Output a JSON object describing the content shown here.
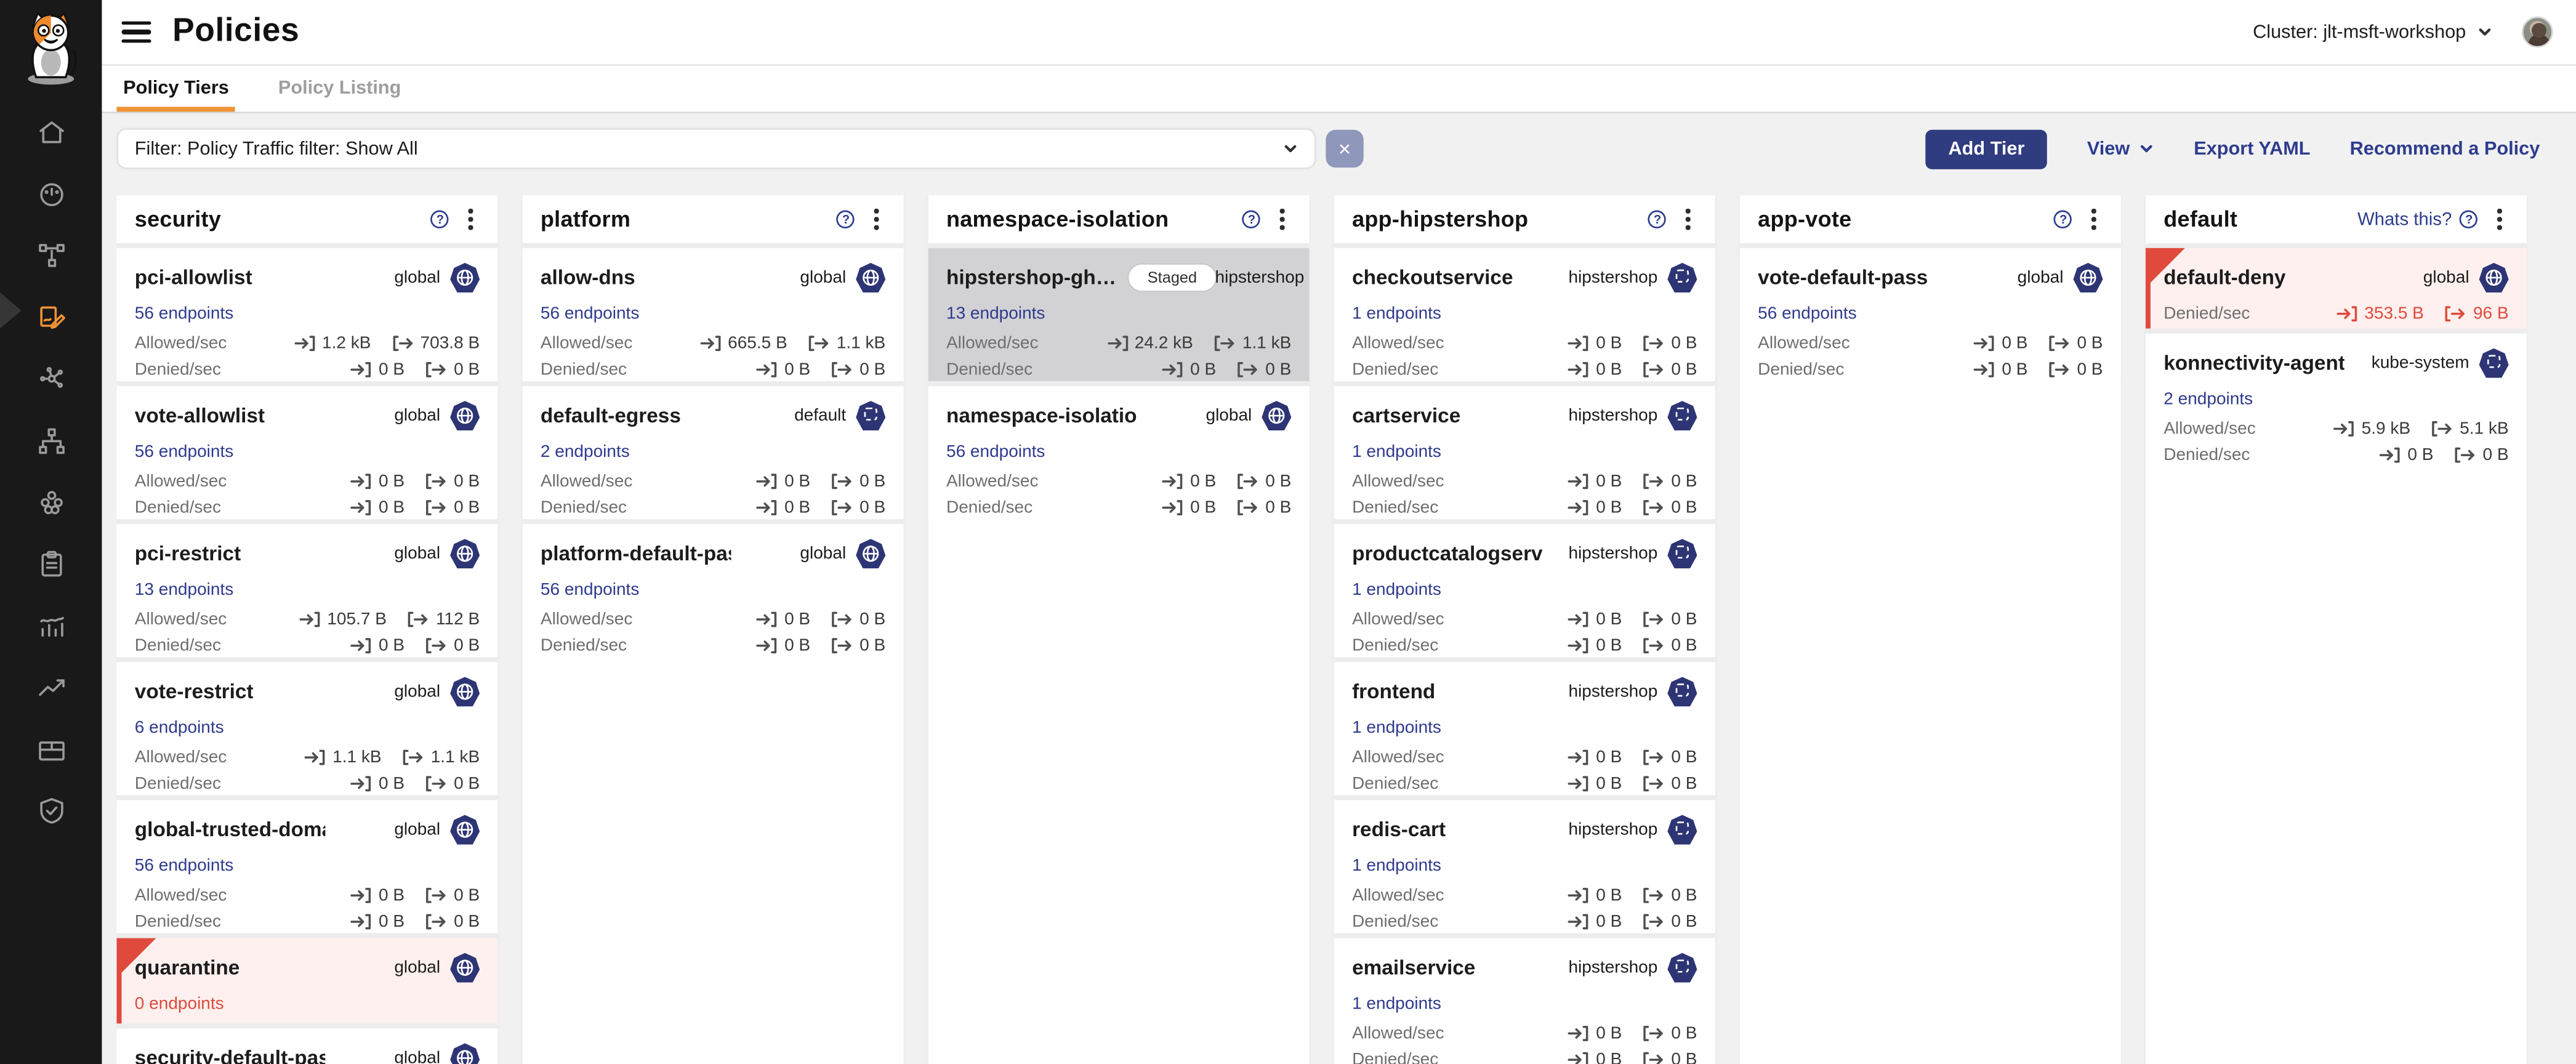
{
  "header": {
    "title": "Policies",
    "cluster_label": "Cluster: jlt-msft-workshop"
  },
  "sidebar": {
    "items": [
      {
        "name": "home"
      },
      {
        "name": "dashboard"
      },
      {
        "name": "service-graph"
      },
      {
        "name": "policies",
        "active": true
      },
      {
        "name": "network"
      },
      {
        "name": "endpoints"
      },
      {
        "name": "workloads"
      },
      {
        "name": "compliance"
      },
      {
        "name": "statistics"
      },
      {
        "name": "trends"
      },
      {
        "name": "storage"
      },
      {
        "name": "threat-defense"
      }
    ]
  },
  "tabs": [
    {
      "label": "Policy Tiers",
      "active": true
    },
    {
      "label": "Policy Listing",
      "active": false
    }
  ],
  "filter": {
    "label": "Filter: Policy Traffic filter: Show All",
    "clear_label": "×"
  },
  "actions": [
    {
      "label": "Add Tier"
    },
    {
      "label": "View"
    },
    {
      "label": "Export YAML"
    },
    {
      "label": "Recommend a Policy"
    }
  ],
  "colors": {
    "accent_orange": "#ef9234",
    "brand_navy": "#303c80",
    "icon_navy": "#2d3575",
    "alert_red": "#df4a3c",
    "selected_gray": "#d2d2d4",
    "alert_pink": "#fdf0ee"
  },
  "tiers": [
    {
      "name": "security",
      "cards": [
        {
          "name": "pci-allowlist",
          "scope": "global",
          "icon": "globe",
          "endpoints": "56 endpoints",
          "rows": [
            {
              "label": "Allowed/sec",
              "ingress": "1.2 kB",
              "egress": "703.8 B"
            },
            {
              "label": "Denied/sec",
              "ingress": "0 B",
              "egress": "0 B"
            }
          ]
        },
        {
          "name": "vote-allowlist",
          "scope": "global",
          "icon": "globe",
          "endpoints": "56 endpoints",
          "rows": [
            {
              "label": "Allowed/sec",
              "ingress": "0 B",
              "egress": "0 B"
            },
            {
              "label": "Denied/sec",
              "ingress": "0 B",
              "egress": "0 B"
            }
          ]
        },
        {
          "name": "pci-restrict",
          "scope": "global",
          "icon": "globe",
          "endpoints": "13 endpoints",
          "rows": [
            {
              "label": "Allowed/sec",
              "ingress": "105.7 B",
              "egress": "112 B"
            },
            {
              "label": "Denied/sec",
              "ingress": "0 B",
              "egress": "0 B"
            }
          ]
        },
        {
          "name": "vote-restrict",
          "scope": "global",
          "icon": "globe",
          "endpoints": "6 endpoints",
          "rows": [
            {
              "label": "Allowed/sec",
              "ingress": "1.1 kB",
              "egress": "1.1 kB"
            },
            {
              "label": "Denied/sec",
              "ingress": "0 B",
              "egress": "0 B"
            }
          ]
        },
        {
          "name": "global-trusted-domains",
          "scope": "global",
          "icon": "globe",
          "endpoints": "56 endpoints",
          "rows": [
            {
              "label": "Allowed/sec",
              "ingress": "0 B",
              "egress": "0 B"
            },
            {
              "label": "Denied/sec",
              "ingress": "0 B",
              "egress": "0 B"
            }
          ]
        },
        {
          "name": "quarantine",
          "scope": "global",
          "icon": "globe",
          "endpoints": "0 endpoints",
          "endpoints_alert": true,
          "alert": true,
          "rows": []
        },
        {
          "name": "security-default-pass",
          "scope": "global",
          "icon": "globe",
          "partial": true,
          "rows": []
        }
      ]
    },
    {
      "name": "platform",
      "cards": [
        {
          "name": "allow-dns",
          "scope": "global",
          "icon": "globe",
          "endpoints": "56 endpoints",
          "rows": [
            {
              "label": "Allowed/sec",
              "ingress": "665.5 B",
              "egress": "1.1 kB"
            },
            {
              "label": "Denied/sec",
              "ingress": "0 B",
              "egress": "0 B"
            }
          ]
        },
        {
          "name": "default-egress",
          "scope": "default",
          "icon": "namespace",
          "endpoints": "2 endpoints",
          "rows": [
            {
              "label": "Allowed/sec",
              "ingress": "0 B",
              "egress": "0 B"
            },
            {
              "label": "Denied/sec",
              "ingress": "0 B",
              "egress": "0 B"
            }
          ]
        },
        {
          "name": "platform-default-pass",
          "scope": "global",
          "icon": "globe",
          "endpoints": "56 endpoints",
          "rows": [
            {
              "label": "Allowed/sec",
              "ingress": "0 B",
              "egress": "0 B"
            },
            {
              "label": "Denied/sec",
              "ingress": "0 B",
              "egress": "0 B"
            }
          ]
        }
      ]
    },
    {
      "name": "namespace-isolation",
      "cards": [
        {
          "name": "hipstershop-gh…",
          "badge": "Staged",
          "scope": "hipstershop",
          "icon": "namespace",
          "selected": true,
          "endpoints": "13 endpoints",
          "rows": [
            {
              "label": "Allowed/sec",
              "ingress": "24.2 kB",
              "egress": "1.1 kB"
            },
            {
              "label": "Denied/sec",
              "ingress": "0 B",
              "egress": "0 B"
            }
          ]
        },
        {
          "name": "namespace-isolation-default-p…",
          "scope": "global",
          "icon": "globe",
          "endpoints": "56 endpoints",
          "rows": [
            {
              "label": "Allowed/sec",
              "ingress": "0 B",
              "egress": "0 B"
            },
            {
              "label": "Denied/sec",
              "ingress": "0 B",
              "egress": "0 B"
            }
          ]
        }
      ]
    },
    {
      "name": "app-hipstershop",
      "cards": [
        {
          "name": "checkoutservice",
          "scope": "hipstershop",
          "icon": "namespace",
          "endpoints": "1 endpoints",
          "rows": [
            {
              "label": "Allowed/sec",
              "ingress": "0 B",
              "egress": "0 B"
            },
            {
              "label": "Denied/sec",
              "ingress": "0 B",
              "egress": "0 B"
            }
          ]
        },
        {
          "name": "cartservice",
          "scope": "hipstershop",
          "icon": "namespace",
          "endpoints": "1 endpoints",
          "rows": [
            {
              "label": "Allowed/sec",
              "ingress": "0 B",
              "egress": "0 B"
            },
            {
              "label": "Denied/sec",
              "ingress": "0 B",
              "egress": "0 B"
            }
          ]
        },
        {
          "name": "productcatalogservice",
          "scope": "hipstershop",
          "icon": "namespace",
          "endpoints": "1 endpoints",
          "rows": [
            {
              "label": "Allowed/sec",
              "ingress": "0 B",
              "egress": "0 B"
            },
            {
              "label": "Denied/sec",
              "ingress": "0 B",
              "egress": "0 B"
            }
          ]
        },
        {
          "name": "frontend",
          "scope": "hipstershop",
          "icon": "namespace",
          "endpoints": "1 endpoints",
          "rows": [
            {
              "label": "Allowed/sec",
              "ingress": "0 B",
              "egress": "0 B"
            },
            {
              "label": "Denied/sec",
              "ingress": "0 B",
              "egress": "0 B"
            }
          ]
        },
        {
          "name": "redis-cart",
          "scope": "hipstershop",
          "icon": "namespace",
          "endpoints": "1 endpoints",
          "rows": [
            {
              "label": "Allowed/sec",
              "ingress": "0 B",
              "egress": "0 B"
            },
            {
              "label": "Denied/sec",
              "ingress": "0 B",
              "egress": "0 B"
            }
          ]
        },
        {
          "name": "emailservice",
          "scope": "hipstershop",
          "icon": "namespace",
          "endpoints": "1 endpoints",
          "rows": [
            {
              "label": "Allowed/sec",
              "ingress": "0 B",
              "egress": "0 B"
            },
            {
              "label": "Denied/sec",
              "ingress": "0 B",
              "egress": "0 B"
            }
          ]
        }
      ]
    },
    {
      "name": "app-vote",
      "cards": [
        {
          "name": "vote-default-pass",
          "scope": "global",
          "icon": "globe",
          "endpoints": "56 endpoints",
          "rows": [
            {
              "label": "Allowed/sec",
              "ingress": "0 B",
              "egress": "0 B"
            },
            {
              "label": "Denied/sec",
              "ingress": "0 B",
              "egress": "0 B"
            }
          ]
        }
      ]
    },
    {
      "name": "default",
      "help_label": "Whats this?",
      "cards": [
        {
          "name": "default-deny",
          "scope": "global",
          "icon": "globe",
          "alert": true,
          "rows": [
            {
              "label": "Denied/sec",
              "ingress": "353.5 B",
              "egress": "96 B",
              "danger": true
            }
          ]
        },
        {
          "name": "konnectivity-agent",
          "scope": "kube-system",
          "icon": "namespace",
          "endpoints": "2 endpoints",
          "rows": [
            {
              "label": "Allowed/sec",
              "ingress": "5.9 kB",
              "egress": "5.1 kB"
            },
            {
              "label": "Denied/sec",
              "ingress": "0 B",
              "egress": "0 B"
            }
          ]
        }
      ]
    }
  ]
}
